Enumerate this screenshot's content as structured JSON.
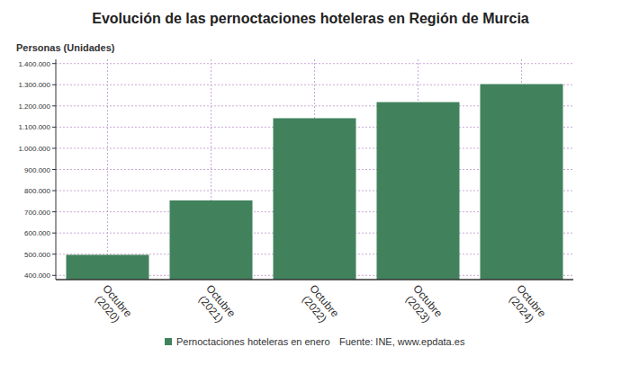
{
  "chart_data": {
    "type": "bar",
    "title": "Evolución de las pernoctaciones hoteleras en Región de Murcia",
    "y_label": "Personas (Unidades)",
    "categories": [
      "Octubre (2020)",
      "Octubre (2021)",
      "Octubre (2022)",
      "Octubre (2023)",
      "Octubre (2024)"
    ],
    "series": [
      {
        "name": "Pernoctaciones hoteleras en enero",
        "color": "#41825d",
        "values": [
          497000,
          754000,
          1142000,
          1218000,
          1303000
        ]
      }
    ],
    "source": "Fuente: INE, www.epdata.es",
    "ylim": [
      380000,
      1420000
    ],
    "yticks": [
      {
        "value": 400000,
        "label": "400.000"
      },
      {
        "value": 500000,
        "label": "500.000"
      },
      {
        "value": 600000,
        "label": "600.000"
      },
      {
        "value": 700000,
        "label": "700.000"
      },
      {
        "value": 800000,
        "label": "800.000"
      },
      {
        "value": 900000,
        "label": "900.000"
      },
      {
        "value": 1000000,
        "label": "1.000.000"
      },
      {
        "value": 1100000,
        "label": "1.100.000"
      },
      {
        "value": 1200000,
        "label": "1.200.000"
      },
      {
        "value": 1300000,
        "label": "1.300.000"
      },
      {
        "value": 1400000,
        "label": "1.400.000"
      }
    ],
    "grid": true,
    "legend": "bottom"
  }
}
